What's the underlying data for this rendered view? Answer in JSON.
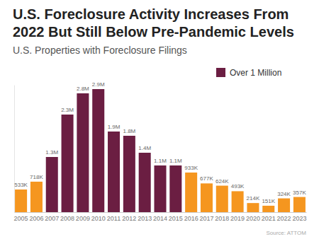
{
  "chart_data": {
    "type": "bar",
    "title": "U.S. Foreclosure Activity Increases From 2022 But Still Below Pre-Pandemic Levels",
    "subtitle": "U.S. Properties with Foreclosure Filings",
    "source": "Source: ATTOM",
    "categories": [
      "2005",
      "2006",
      "2007",
      "2008",
      "2009",
      "2010",
      "2011",
      "2012",
      "2013",
      "2014",
      "2015",
      "2016",
      "2017",
      "2018",
      "2019",
      "2020",
      "2021",
      "2022",
      "2023"
    ],
    "series": [
      {
        "name": "Over 1 Million",
        "color": "#6b1e42",
        "values": [
          null,
          null,
          1300000,
          2300000,
          2800000,
          2900000,
          1900000,
          1800000,
          1400000,
          1100000,
          1100000,
          null,
          null,
          null,
          null,
          null,
          null,
          null,
          null
        ],
        "value_labels": [
          null,
          null,
          "1.3M",
          "2.3M",
          "2.8M",
          "2.9M",
          "1.9M",
          "1.8M",
          "1.4M",
          "1.1M",
          "1.1M",
          null,
          null,
          null,
          null,
          null,
          null,
          null,
          null
        ]
      },
      {
        "color": "#f5961f",
        "values": [
          533000,
          718000,
          null,
          null,
          null,
          null,
          null,
          null,
          null,
          null,
          null,
          933000,
          677000,
          624000,
          493000,
          214000,
          151000,
          324000,
          357000
        ],
        "value_labels": [
          "533K",
          "718K",
          null,
          null,
          null,
          null,
          null,
          null,
          null,
          null,
          null,
          "933K",
          "677K",
          "624K",
          "493K",
          "214K",
          "151K",
          "324K",
          "357K"
        ]
      }
    ],
    "ylim": [
      0,
      3000000
    ],
    "data_labels": true,
    "tick_labels": "x",
    "legend": "top-right"
  }
}
